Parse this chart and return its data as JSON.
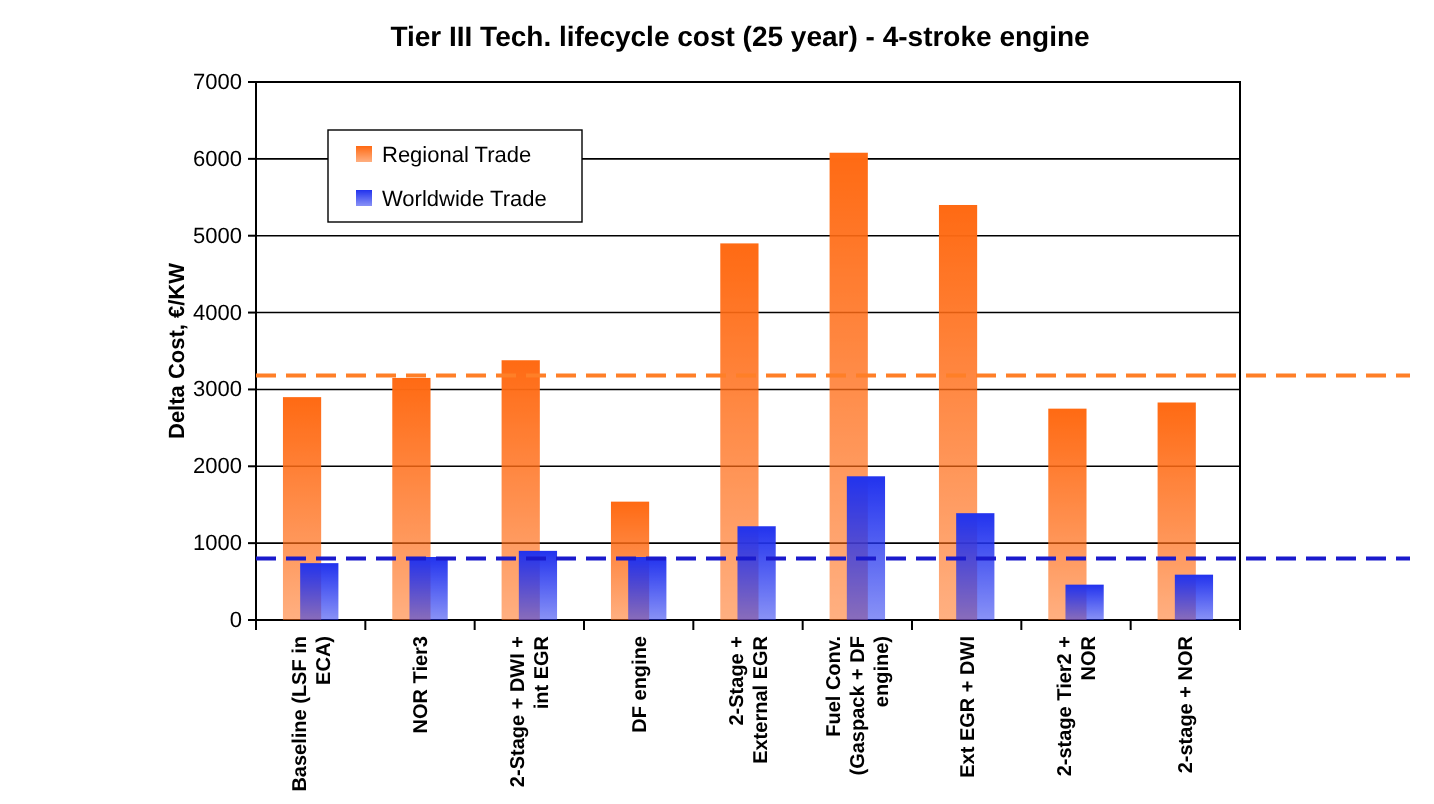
{
  "chart_data": {
    "type": "bar",
    "title": "Tier III Tech. lifecycle cost (25 year) -  4-stroke engine",
    "ylabel": "Delta Cost, €/KW",
    "categories": [
      "Baseline (LSF in ECA)",
      "NOR Tier3",
      "2-Stage + DWI + int EGR",
      "DF engine",
      "2-Stage + External EGR",
      "Fuel Conv. (Gaspack + DF engine)",
      "Ext EGR + DWI",
      "2-stage Tier2 + NOR",
      "2-stage + NOR"
    ],
    "series": [
      {
        "name": "Regional Trade",
        "color": "#ff6a13",
        "values": [
          2900,
          3150,
          3380,
          1540,
          4900,
          6080,
          5400,
          2750,
          2830
        ]
      },
      {
        "name": "Worldwide Trade",
        "color": "#2233ee",
        "values": [
          740,
          820,
          900,
          820,
          1220,
          1870,
          1390,
          460,
          590
        ]
      }
    ],
    "ylim": [
      0,
      7000
    ],
    "yticks": [
      0,
      1000,
      2000,
      3000,
      4000,
      5000,
      6000,
      7000
    ],
    "grid": "y",
    "legend": "top left",
    "ref_lines": [
      {
        "axis": "y",
        "value": 3180,
        "color": "#ff7f27",
        "line_style": "dashed"
      },
      {
        "axis": "y",
        "value": 800,
        "color": "#1a1acc",
        "line_style": "dashed"
      }
    ]
  }
}
